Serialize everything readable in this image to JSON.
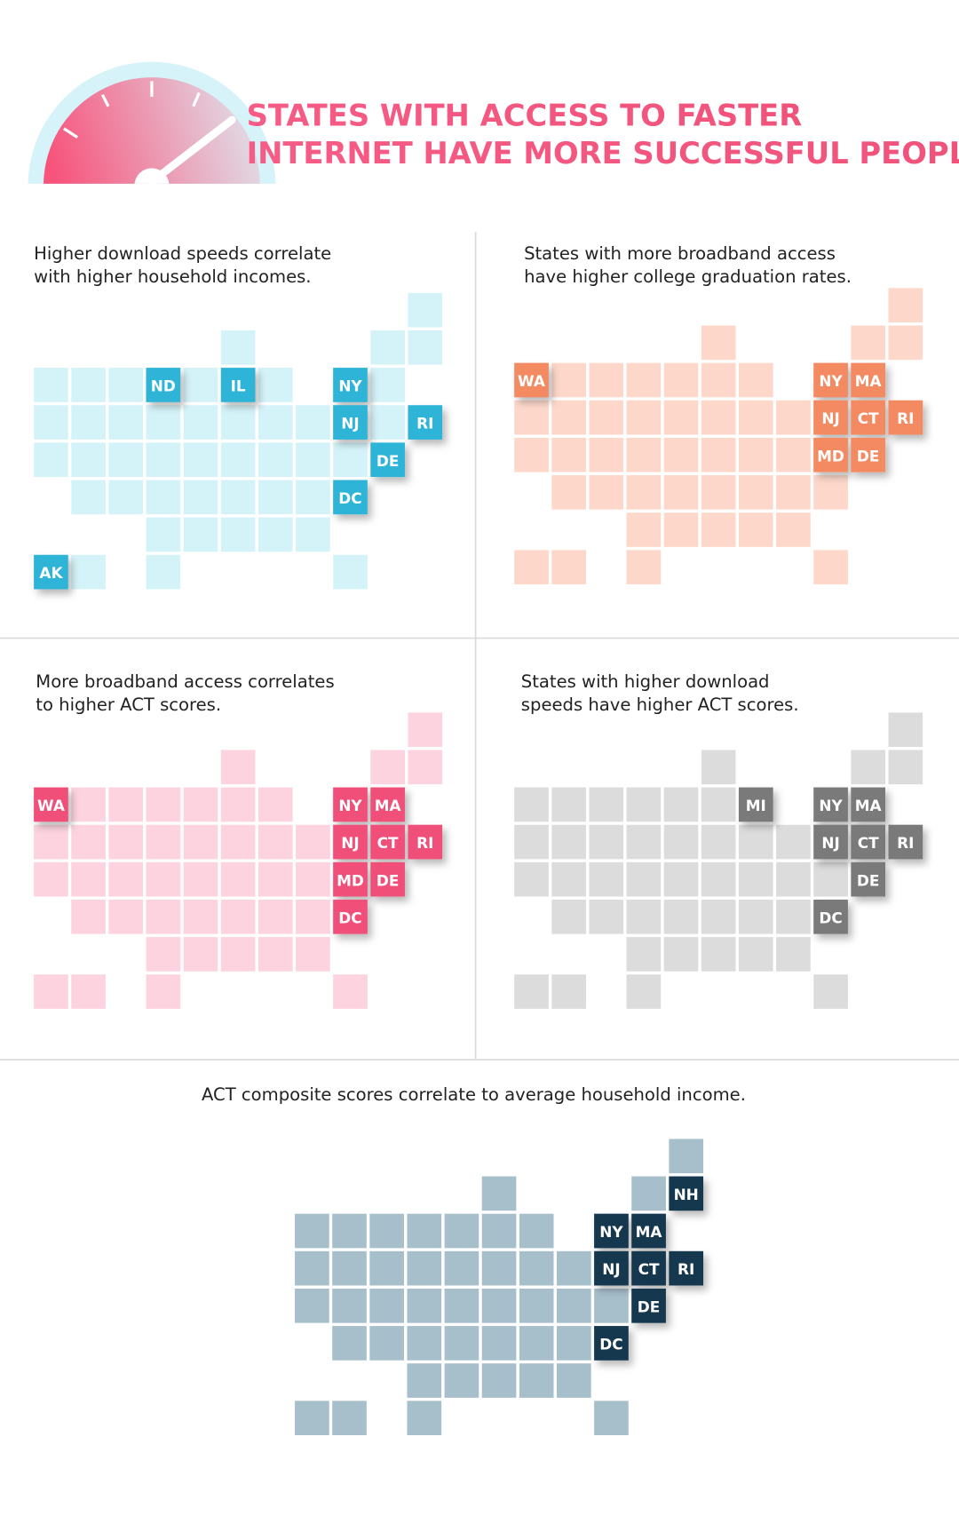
{
  "header": {
    "title_lines": [
      "STATES WITH ACCESS TO FASTER",
      "INTERNET HAVE MORE SUCCESSFUL PEOPLE"
    ]
  },
  "panels": [
    {
      "caption_lines": [
        "Higher download speeds correlate",
        "with higher household incomes."
      ],
      "highlighted": [
        "ND",
        "IL",
        "NY",
        "NJ",
        "RI",
        "DE",
        "DC",
        "AK"
      ],
      "colors": {
        "tile": "#d4f3f8",
        "highlight": "#2db4d7"
      }
    },
    {
      "caption_lines": [
        "States with more broadband access",
        "have higher college graduation rates."
      ],
      "highlighted": [
        "WA",
        "NY",
        "MA",
        "NJ",
        "CT",
        "RI",
        "MD",
        "DE"
      ],
      "colors": {
        "tile": "#fdd8ca",
        "highlight": "#f38a62"
      }
    },
    {
      "caption_lines": [
        "More broadband access correlates",
        "to higher ACT scores."
      ],
      "highlighted": [
        "WA",
        "NY",
        "MA",
        "NJ",
        "CT",
        "RI",
        "MD",
        "DE",
        "DC"
      ],
      "colors": {
        "tile": "#fcd3de",
        "highlight": "#f0507a"
      }
    },
    {
      "caption_lines": [
        "States with higher download",
        "speeds have higher ACT scores."
      ],
      "highlighted": [
        "MI",
        "NY",
        "MA",
        "NJ",
        "CT",
        "RI",
        "DE",
        "DC"
      ],
      "colors": {
        "tile": "#dcdcdc",
        "highlight": "#7a7a7a"
      }
    },
    {
      "caption_lines": [
        "ACT composite scores correlate to average household income."
      ],
      "highlighted": [
        "NH",
        "NY",
        "MA",
        "NJ",
        "CT",
        "RI",
        "DE",
        "DC"
      ],
      "colors": {
        "tile": "#a7becb",
        "highlight": "#163950"
      }
    }
  ]
}
